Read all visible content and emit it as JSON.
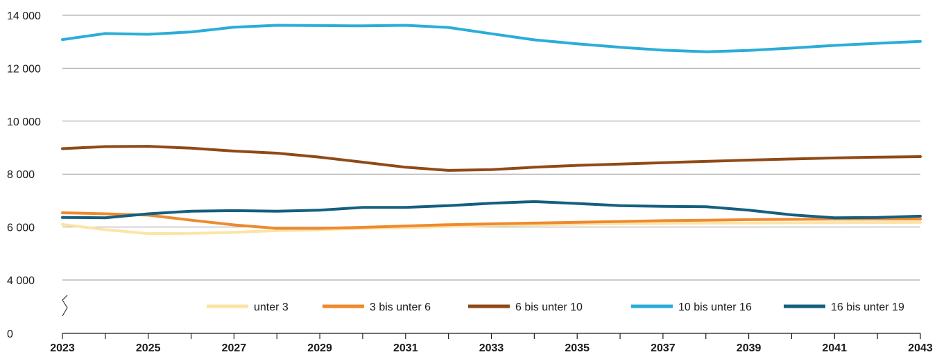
{
  "chart_data": {
    "type": "line",
    "title": "",
    "xlabel": "",
    "ylabel": "",
    "x": [
      2023,
      2024,
      2025,
      2026,
      2027,
      2028,
      2029,
      2030,
      2031,
      2032,
      2033,
      2034,
      2035,
      2036,
      2037,
      2038,
      2039,
      2040,
      2041,
      2042,
      2043
    ],
    "x_tick_labels": [
      "2023",
      "2025",
      "2027",
      "2029",
      "2031",
      "2033",
      "2035",
      "2037",
      "2039",
      "2041",
      "2043"
    ],
    "y_tick_labels": [
      "0",
      "4 000",
      "6 000",
      "8 000",
      "10 000",
      "12 000",
      "14 000"
    ],
    "ylim": [
      0,
      14000
    ],
    "y_axis_break": "between 0 and 4 000",
    "grid": true,
    "legend_position": "bottom-right inside plot",
    "series": [
      {
        "name": "unter 3",
        "color": "#fde4a6",
        "values": [
          6100,
          5900,
          5750,
          5760,
          5800,
          5860,
          5900,
          5950,
          5980,
          6020,
          6060,
          6090,
          6110,
          6130,
          6140,
          6150,
          6155,
          6160,
          6165,
          6170,
          6175
        ]
      },
      {
        "name": "3 bis unter 6",
        "color": "#ee8a2e",
        "values": [
          6540,
          6500,
          6450,
          6260,
          6080,
          5950,
          5950,
          5990,
          6040,
          6090,
          6120,
          6150,
          6180,
          6210,
          6240,
          6260,
          6280,
          6290,
          6300,
          6300,
          6300
        ]
      },
      {
        "name": "6 bis unter 10",
        "color": "#8f4a17",
        "values": [
          8960,
          9040,
          9050,
          8980,
          8870,
          8790,
          8640,
          8450,
          8260,
          8140,
          8170,
          8260,
          8330,
          8380,
          8430,
          8480,
          8530,
          8570,
          8610,
          8640,
          8660
        ]
      },
      {
        "name": "10 bis unter 16",
        "color": "#2badd8",
        "values": [
          13080,
          13310,
          13280,
          13370,
          13550,
          13620,
          13610,
          13600,
          13620,
          13540,
          13300,
          13070,
          12920,
          12790,
          12680,
          12620,
          12670,
          12760,
          12860,
          12940,
          13010
        ]
      },
      {
        "name": "16 bis unter 19",
        "color": "#155f7f",
        "values": [
          6360,
          6350,
          6500,
          6600,
          6620,
          6600,
          6640,
          6740,
          6740,
          6810,
          6900,
          6960,
          6890,
          6810,
          6780,
          6770,
          6640,
          6460,
          6350,
          6360,
          6410
        ]
      }
    ]
  }
}
